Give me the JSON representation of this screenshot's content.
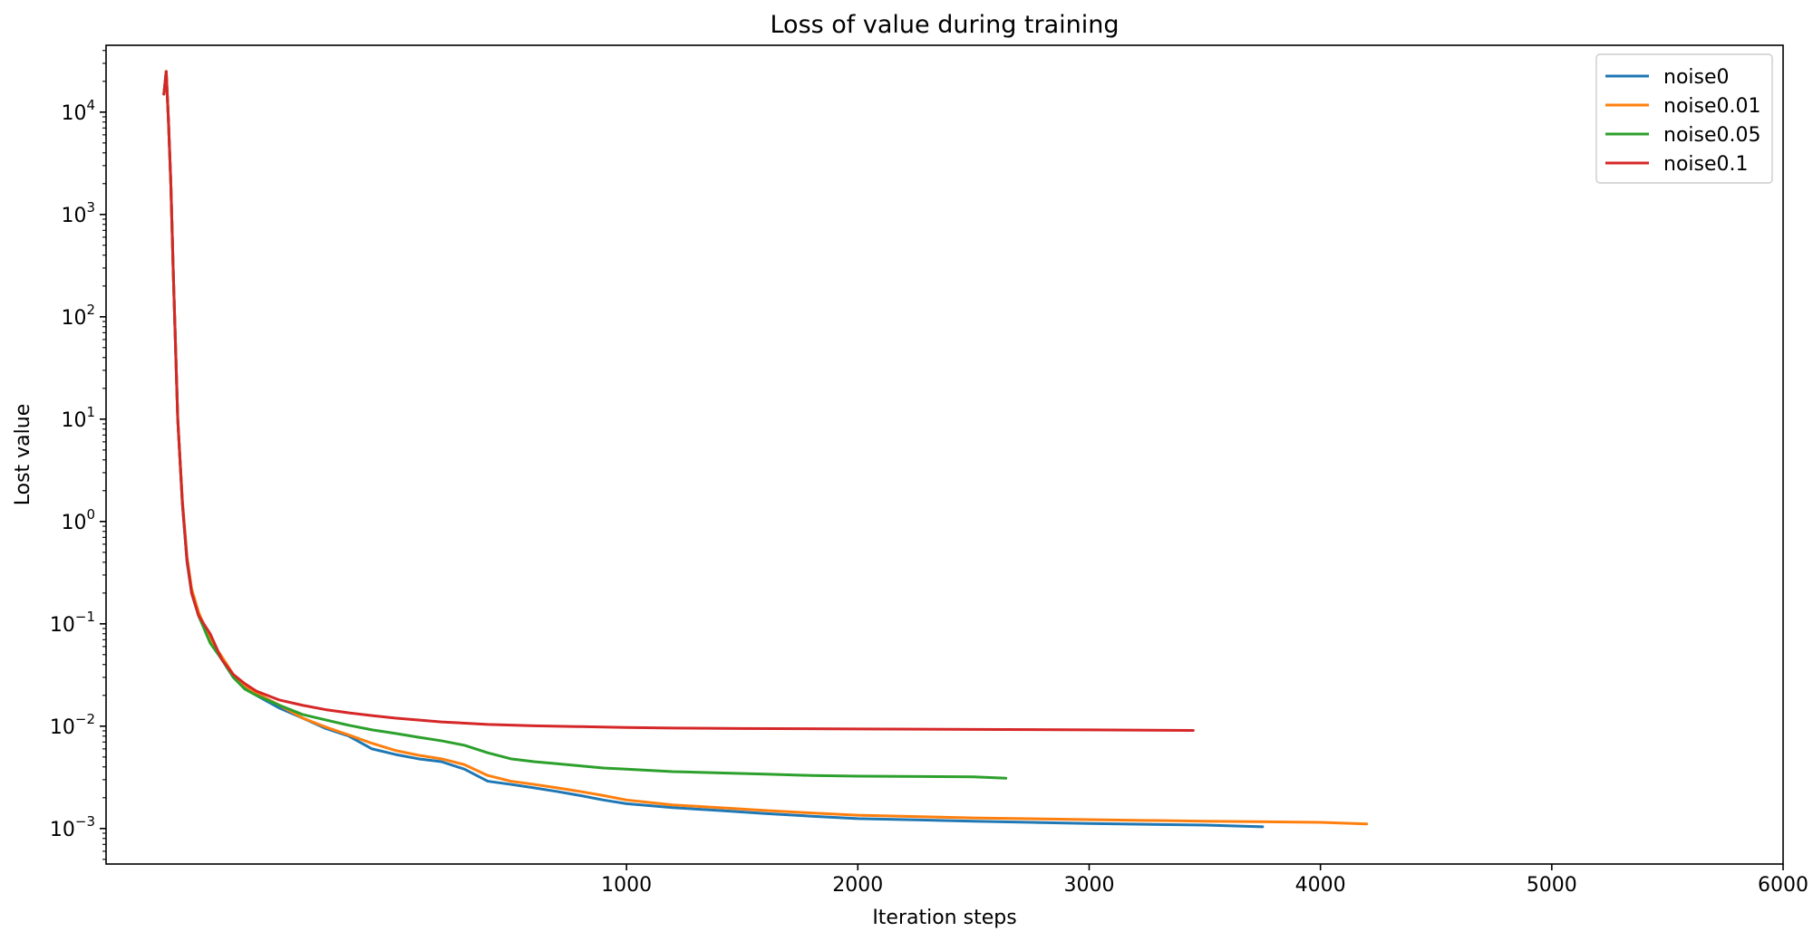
{
  "chart_data": {
    "type": "line",
    "title": "Loss of value during training",
    "xlabel": "Iteration steps",
    "ylabel": "Lost value",
    "xlim": [
      -1250,
      6000
    ],
    "ylim": [
      0.00045,
      45000
    ],
    "yscale": "log",
    "x_ticks": [
      1000,
      2000,
      3000,
      4000,
      5000,
      6000
    ],
    "x_tick_labels": [
      "1000",
      "2000",
      "3000",
      "4000",
      "5000",
      "6000"
    ],
    "y_ticks": [
      {
        "value": 0.001,
        "base": "10",
        "exp": "−3"
      },
      {
        "value": 0.01,
        "base": "10",
        "exp": "−2"
      },
      {
        "value": 0.1,
        "base": "10",
        "exp": "−1"
      },
      {
        "value": 1,
        "base": "10",
        "exp": "0"
      },
      {
        "value": 10,
        "base": "10",
        "exp": "1"
      },
      {
        "value": 100,
        "base": "10",
        "exp": "2"
      },
      {
        "value": 1000,
        "base": "10",
        "exp": "3"
      },
      {
        "value": 10000,
        "base": "10",
        "exp": "4"
      }
    ],
    "grid": false,
    "legend": "top-right",
    "series": [
      {
        "name": "noise0",
        "color": "#1f77b4",
        "points": [
          [
            -1000,
            15000
          ],
          [
            -990,
            25000
          ],
          [
            -980,
            8000
          ],
          [
            -970,
            2000
          ],
          [
            -960,
            300
          ],
          [
            -940,
            10
          ],
          [
            -920,
            1.5
          ],
          [
            -900,
            0.4
          ],
          [
            -880,
            0.2
          ],
          [
            -850,
            0.12
          ],
          [
            -800,
            0.07
          ],
          [
            -750,
            0.045
          ],
          [
            -700,
            0.03
          ],
          [
            -650,
            0.024
          ],
          [
            -600,
            0.02
          ],
          [
            -500,
            0.015
          ],
          [
            -400,
            0.012
          ],
          [
            -300,
            0.0095
          ],
          [
            -200,
            0.008
          ],
          [
            -100,
            0.006
          ],
          [
            0,
            0.0053
          ],
          [
            100,
            0.0048
          ],
          [
            200,
            0.0045
          ],
          [
            300,
            0.0038
          ],
          [
            400,
            0.0029
          ],
          [
            500,
            0.0027
          ],
          [
            600,
            0.0025
          ],
          [
            700,
            0.0023
          ],
          [
            800,
            0.0021
          ],
          [
            900,
            0.0019
          ],
          [
            1000,
            0.00175
          ],
          [
            1200,
            0.0016
          ],
          [
            1400,
            0.0015
          ],
          [
            1600,
            0.0014
          ],
          [
            1800,
            0.00132
          ],
          [
            2000,
            0.00125
          ],
          [
            2500,
            0.00118
          ],
          [
            3000,
            0.00112
          ],
          [
            3500,
            0.00108
          ],
          [
            3750,
            0.00104
          ]
        ]
      },
      {
        "name": "noise0.01",
        "color": "#ff7f0e",
        "points": [
          [
            -1000,
            15000
          ],
          [
            -990,
            25000
          ],
          [
            -980,
            8000
          ],
          [
            -970,
            2000
          ],
          [
            -960,
            300
          ],
          [
            -940,
            10
          ],
          [
            -920,
            1.6
          ],
          [
            -900,
            0.45
          ],
          [
            -880,
            0.22
          ],
          [
            -850,
            0.13
          ],
          [
            -800,
            0.07
          ],
          [
            -750,
            0.048
          ],
          [
            -700,
            0.032
          ],
          [
            -650,
            0.025
          ],
          [
            -600,
            0.021
          ],
          [
            -500,
            0.016
          ],
          [
            -400,
            0.012
          ],
          [
            -300,
            0.0098
          ],
          [
            -200,
            0.0082
          ],
          [
            -100,
            0.0068
          ],
          [
            0,
            0.0058
          ],
          [
            100,
            0.0052
          ],
          [
            200,
            0.0048
          ],
          [
            300,
            0.0042
          ],
          [
            400,
            0.0033
          ],
          [
            500,
            0.0029
          ],
          [
            600,
            0.0027
          ],
          [
            700,
            0.0025
          ],
          [
            800,
            0.0023
          ],
          [
            900,
            0.0021
          ],
          [
            1000,
            0.0019
          ],
          [
            1200,
            0.0017
          ],
          [
            1400,
            0.0016
          ],
          [
            1600,
            0.0015
          ],
          [
            1800,
            0.00142
          ],
          [
            2000,
            0.00135
          ],
          [
            2500,
            0.00127
          ],
          [
            3000,
            0.00122
          ],
          [
            3500,
            0.00118
          ],
          [
            4000,
            0.00115
          ],
          [
            4200,
            0.00111
          ]
        ]
      },
      {
        "name": "noise0.05",
        "color": "#2ca02c",
        "points": [
          [
            -1000,
            15000
          ],
          [
            -990,
            25000
          ],
          [
            -980,
            8000
          ],
          [
            -970,
            2000
          ],
          [
            -960,
            300
          ],
          [
            -940,
            10
          ],
          [
            -920,
            1.5
          ],
          [
            -900,
            0.42
          ],
          [
            -880,
            0.2
          ],
          [
            -850,
            0.12
          ],
          [
            -800,
            0.065
          ],
          [
            -750,
            0.045
          ],
          [
            -700,
            0.03
          ],
          [
            -650,
            0.023
          ],
          [
            -600,
            0.02
          ],
          [
            -500,
            0.016
          ],
          [
            -400,
            0.013
          ],
          [
            -300,
            0.0115
          ],
          [
            -200,
            0.0102
          ],
          [
            -100,
            0.0092
          ],
          [
            0,
            0.0085
          ],
          [
            100,
            0.0078
          ],
          [
            200,
            0.0072
          ],
          [
            300,
            0.0065
          ],
          [
            400,
            0.0055
          ],
          [
            500,
            0.0048
          ],
          [
            600,
            0.0045
          ],
          [
            700,
            0.0043
          ],
          [
            800,
            0.0041
          ],
          [
            900,
            0.0039
          ],
          [
            1000,
            0.0038
          ],
          [
            1200,
            0.0036
          ],
          [
            1400,
            0.0035
          ],
          [
            1600,
            0.0034
          ],
          [
            1800,
            0.0033
          ],
          [
            2000,
            0.00325
          ],
          [
            2500,
            0.0032
          ],
          [
            2640,
            0.0031
          ]
        ]
      },
      {
        "name": "noise0.1",
        "color": "#d62728",
        "points": [
          [
            -1000,
            15000
          ],
          [
            -990,
            25000
          ],
          [
            -980,
            8000
          ],
          [
            -970,
            2000
          ],
          [
            -960,
            300
          ],
          [
            -940,
            10
          ],
          [
            -920,
            1.5
          ],
          [
            -900,
            0.42
          ],
          [
            -880,
            0.2
          ],
          [
            -850,
            0.12
          ],
          [
            -800,
            0.08
          ],
          [
            -750,
            0.045
          ],
          [
            -700,
            0.032
          ],
          [
            -650,
            0.026
          ],
          [
            -600,
            0.022
          ],
          [
            -500,
            0.018
          ],
          [
            -400,
            0.016
          ],
          [
            -300,
            0.0145
          ],
          [
            -200,
            0.0135
          ],
          [
            -100,
            0.0127
          ],
          [
            0,
            0.012
          ],
          [
            100,
            0.0115
          ],
          [
            200,
            0.011
          ],
          [
            300,
            0.0107
          ],
          [
            400,
            0.0104
          ],
          [
            600,
            0.0101
          ],
          [
            800,
            0.0099
          ],
          [
            1000,
            0.0097
          ],
          [
            1200,
            0.0096
          ],
          [
            1500,
            0.0095
          ],
          [
            2000,
            0.0094
          ],
          [
            2500,
            0.0093
          ],
          [
            3000,
            0.0092
          ],
          [
            3450,
            0.0091
          ]
        ]
      }
    ]
  }
}
